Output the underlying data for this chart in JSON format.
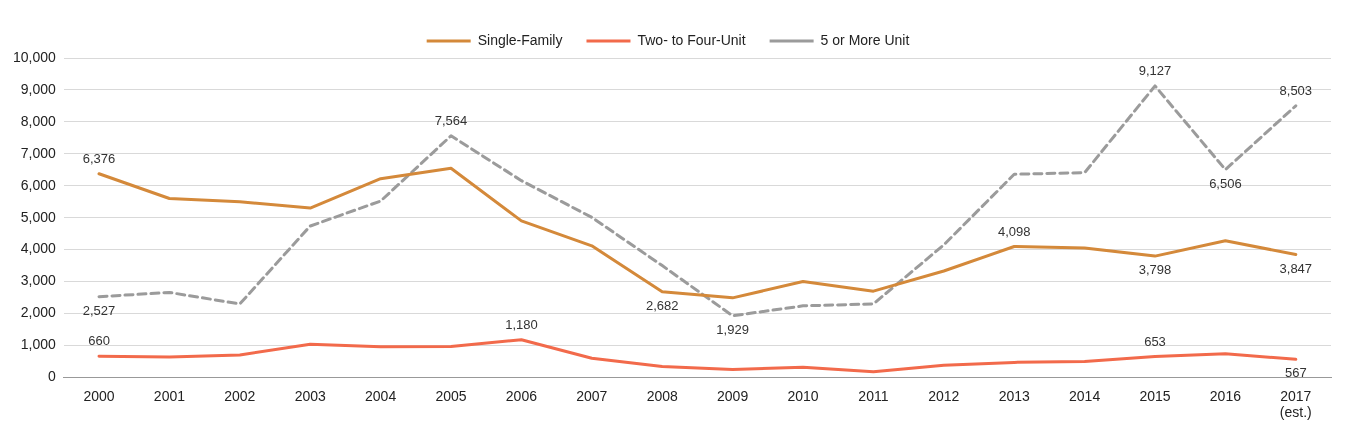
{
  "chart_data": {
    "type": "line",
    "categories": [
      "2000",
      "2001",
      "2002",
      "2003",
      "2004",
      "2005",
      "2006",
      "2007",
      "2008",
      "2009",
      "2010",
      "2011",
      "2012",
      "2013",
      "2014",
      "2015",
      "2016",
      "2017 (est.)"
    ],
    "series": [
      {
        "name": "Single-Family",
        "color": "#d4893a",
        "line_style": "solid",
        "values": [
          6376,
          5600,
          5500,
          5300,
          6220,
          6550,
          4900,
          4120,
          2682,
          2490,
          3000,
          2700,
          3330,
          4098,
          4050,
          3798,
          4280,
          3847
        ],
        "value_labels": [
          "6,376",
          null,
          null,
          null,
          null,
          null,
          null,
          null,
          "2,682",
          null,
          null,
          null,
          null,
          "4,098",
          null,
          "3,798",
          null,
          "3,847"
        ]
      },
      {
        "name": "Two- to Four-Unit",
        "color": "#f26a4b",
        "line_style": "solid",
        "values": [
          660,
          640,
          700,
          1040,
          960,
          970,
          1180,
          600,
          340,
          250,
          320,
          180,
          380,
          470,
          500,
          653,
          740,
          567
        ],
        "value_labels": [
          "660",
          null,
          null,
          null,
          null,
          null,
          "1,180",
          null,
          null,
          null,
          null,
          null,
          null,
          null,
          null,
          "653",
          null,
          "567"
        ]
      },
      {
        "name": "5 or More Unit",
        "color": "#9b9b9b",
        "line_style": "dashed",
        "values": [
          2527,
          2660,
          2300,
          4740,
          5520,
          7564,
          6160,
          5010,
          3500,
          1929,
          2240,
          2300,
          4150,
          6360,
          6410,
          9127,
          6506,
          8503
        ],
        "value_labels": [
          "2,527",
          null,
          null,
          null,
          null,
          "7,564",
          null,
          null,
          null,
          "1,929",
          null,
          null,
          null,
          null,
          null,
          "9,127",
          "6,506",
          "8,503"
        ]
      }
    ],
    "ylim": [
      0,
      10000
    ],
    "yticks": [
      {
        "value": 0,
        "label": "0"
      },
      {
        "value": 1000,
        "label": "1,000"
      },
      {
        "value": 2000,
        "label": "2,000"
      },
      {
        "value": 3000,
        "label": "3,000"
      },
      {
        "value": 4000,
        "label": "4,000"
      },
      {
        "value": 5000,
        "label": "5,000"
      },
      {
        "value": 6000,
        "label": "6,000"
      },
      {
        "value": 7000,
        "label": "7,000"
      },
      {
        "value": 8000,
        "label": "8,000"
      },
      {
        "value": 9000,
        "label": "9,000"
      },
      {
        "value": 10000,
        "label": "10,000"
      }
    ],
    "grid": "y",
    "legend": "top",
    "marker": "none"
  }
}
